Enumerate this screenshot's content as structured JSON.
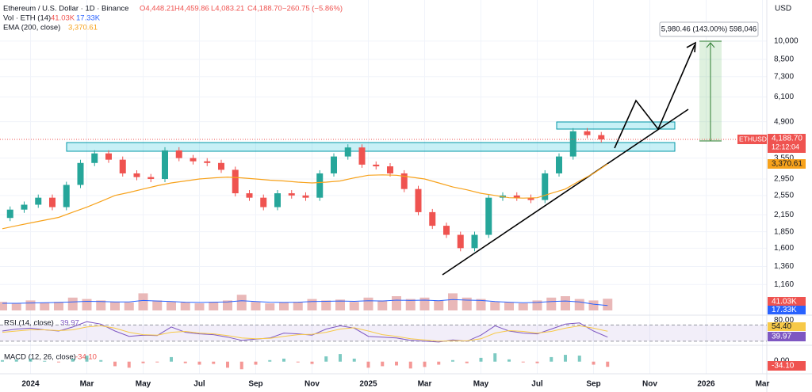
{
  "chart_data": [
    {
      "type": "candlestick",
      "title": "Ethereum / U.S. Dollar · 1D · Binance",
      "ohlc": {
        "open": "O4,448.21",
        "high": "H4,459.86",
        "low": "L4,083.21",
        "close": "C4,188.70",
        "change": "−260.75 (−5.86%)"
      },
      "currency": "USD",
      "symbol": "ETHUSD",
      "countdown": "12:12:04",
      "last_price": {
        "value": 4188.7,
        "label": "4,188.70"
      },
      "ema_title": "EMA (200, close)",
      "ema_last": {
        "value": 3370.61,
        "label": "3,370.61"
      },
      "measure_label": "5,980.46 (143.00%) 598,046",
      "log_scale": true,
      "categories": [
        null,
        null,
        "2024",
        null,
        null,
        null,
        "Mar",
        null,
        null,
        null,
        "May",
        null,
        null,
        null,
        "Jul",
        null,
        null,
        null,
        "Sep",
        null,
        null,
        null,
        "Nov",
        null,
        null,
        null,
        "2025",
        null,
        null,
        null,
        "Mar",
        null,
        null,
        null,
        "May",
        null,
        null,
        null,
        "Jul",
        null,
        null,
        null,
        "Sep",
        null,
        null,
        null,
        "Nov",
        null,
        null,
        null,
        "2026",
        null,
        null,
        null,
        "Mar"
      ],
      "series": [
        {
          "name": "ETHUSD",
          "up_color": "#26a69a",
          "down_color": "#ef5350",
          "values": [
            2090,
            2250,
            2350,
            2500,
            2300,
            2800,
            3400,
            3700,
            3500,
            3100,
            3000,
            2950,
            3800,
            3550,
            3450,
            3400,
            3200,
            2600,
            2500,
            2300,
            2600,
            2550,
            2500,
            3100,
            3600,
            3900,
            3350,
            3300,
            3100,
            2700,
            2200,
            1950,
            1800,
            1600,
            1800,
            2500,
            2550,
            2500,
            2450,
            3100,
            3600,
            4500,
            4350,
            4188.7,
            null,
            null,
            null,
            null,
            null,
            null,
            null,
            null,
            null,
            null,
            null
          ]
        },
        {
          "name": "EMA",
          "color": "#f7a21b",
          "values": [
            1900,
            1950,
            2000,
            2050,
            2100,
            2200,
            2300,
            2420,
            2550,
            2620,
            2700,
            2780,
            2850,
            2900,
            2950,
            2980,
            3000,
            2980,
            2950,
            2920,
            2900,
            2870,
            2850,
            2870,
            2900,
            2980,
            3050,
            3060,
            3050,
            3000,
            2950,
            2850,
            2750,
            2680,
            2600,
            2550,
            2500,
            2490,
            2500,
            2600,
            2700,
            2900,
            3100,
            3370.61,
            null,
            null,
            null,
            null,
            null,
            null,
            null,
            null,
            null,
            null,
            null
          ]
        }
      ],
      "ylim": [
        884,
        14380
      ],
      "yticks": [
        {
          "value": 1160,
          "label": "1,160"
        },
        {
          "value": 1360,
          "label": "1,360"
        },
        {
          "value": 1600,
          "label": "1,600"
        },
        {
          "value": 1850,
          "label": "1,850"
        },
        {
          "value": 2150,
          "label": "2,150"
        },
        {
          "value": 2550,
          "label": "2,550"
        },
        {
          "value": 2950,
          "label": "2,950"
        },
        {
          "value": 3550,
          "label": "3,550"
        },
        {
          "value": 4900,
          "label": "4,900"
        },
        {
          "value": 6100,
          "label": "6,100"
        },
        {
          "value": 7300,
          "label": "7,300"
        },
        {
          "value": 8500,
          "label": "8,500"
        },
        {
          "value": 10000,
          "label": "10,000"
        }
      ]
    },
    {
      "type": "bar",
      "title": "Vol · ETH (14)",
      "last_label": "41.03K",
      "ma_label": "17.33K",
      "color": "#e9b8b8",
      "ma_color": "#2962ff",
      "values": [
        30,
        25,
        35,
        28,
        30,
        45,
        40,
        35,
        30,
        28,
        60,
        35,
        30,
        28,
        25,
        30,
        35,
        55,
        30,
        25,
        28,
        30,
        40,
        35,
        38,
        30,
        45,
        35,
        50,
        40,
        45,
        35,
        60,
        45,
        40,
        30,
        28,
        25,
        35,
        45,
        50,
        40,
        35,
        41.03
      ],
      "ma": [
        25,
        25,
        26,
        27,
        28,
        30,
        32,
        31,
        30,
        30,
        35,
        33,
        31,
        29,
        28,
        29,
        30,
        34,
        31,
        29,
        28,
        29,
        31,
        32,
        33,
        32,
        34,
        33,
        36,
        35,
        36,
        34,
        38,
        36,
        35,
        31,
        29,
        27,
        28,
        31,
        33,
        30,
        22,
        17.33
      ],
      "ylim": [
        0,
        250
      ]
    },
    {
      "type": "line",
      "title": "RSI (14, close)",
      "last_label": "39.97",
      "ma_label": "54.40",
      "color": "#7e57c2",
      "ma_color": "#f7c948",
      "levels": [
        30,
        70
      ],
      "values": [
        55,
        60,
        62,
        58,
        55,
        65,
        78,
        72,
        55,
        42,
        45,
        44,
        65,
        52,
        48,
        46,
        40,
        32,
        35,
        38,
        50,
        48,
        45,
        60,
        68,
        62,
        42,
        40,
        38,
        32,
        30,
        28,
        33,
        30,
        45,
        68,
        55,
        50,
        48,
        60,
        72,
        75,
        55,
        39.97
      ],
      "ma": [
        52,
        55,
        58,
        58,
        56,
        58,
        65,
        68,
        62,
        52,
        46,
        45,
        52,
        54,
        50,
        48,
        44,
        38,
        36,
        37,
        42,
        46,
        47,
        52,
        60,
        63,
        55,
        46,
        42,
        36,
        33,
        30,
        31,
        31,
        36,
        50,
        56,
        54,
        50,
        54,
        62,
        68,
        62,
        54.4
      ],
      "ylim": [
        20,
        94
      ],
      "yticks": [
        {
          "value": 80,
          "label": "80.00"
        }
      ]
    },
    {
      "type": "histogram",
      "title": "MACD (12, 26, close)",
      "last_label": "-34.10",
      "up_color": "#26a69a",
      "down_color": "#ef5350",
      "values": [
        10,
        15,
        20,
        5,
        -5,
        20,
        40,
        10,
        -30,
        -40,
        -10,
        -5,
        30,
        -10,
        -20,
        -15,
        -40,
        -50,
        -20,
        10,
        20,
        -5,
        -15,
        35,
        50,
        20,
        -40,
        -30,
        -25,
        -45,
        -35,
        -20,
        10,
        -10,
        25,
        55,
        15,
        -5,
        -10,
        30,
        45,
        40,
        -20,
        -34.1
      ],
      "ylim": [
        -80,
        108
      ],
      "yticks": [
        {
          "value": 0,
          "label": "0.00"
        }
      ]
    }
  ]
}
